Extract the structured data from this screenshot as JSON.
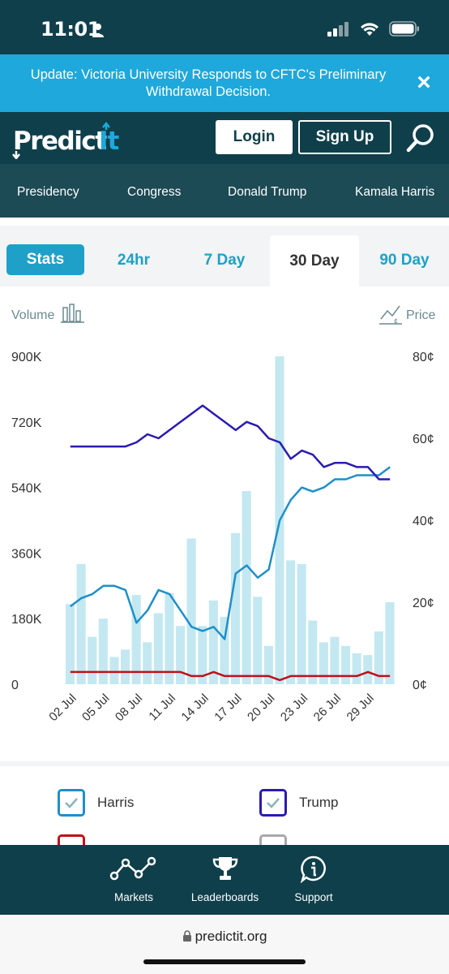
{
  "status_bar": {
    "time": "11:01"
  },
  "banner": {
    "text": "Update: Victoria University Responds to CFTC's Preliminary Withdrawal Decision.",
    "close_label": "×"
  },
  "header": {
    "logo_text": "PredictIt",
    "login_label": "Login",
    "signup_label": "Sign Up"
  },
  "nav": {
    "items": [
      "Presidency",
      "Congress",
      "Donald Trump",
      "Kamala Harris"
    ]
  },
  "tabs": {
    "items": [
      "Stats",
      "24hr",
      "7 Day",
      "30 Day",
      "90 Day"
    ],
    "active": "30 Day"
  },
  "chart_labels": {
    "volume_label": "Volume",
    "price_label": "Price"
  },
  "chart_data": {
    "type": "bar+line",
    "x": [
      "02 Jul",
      "03 Jul",
      "04 Jul",
      "05 Jul",
      "06 Jul",
      "07 Jul",
      "08 Jul",
      "09 Jul",
      "10 Jul",
      "11 Jul",
      "12 Jul",
      "13 Jul",
      "14 Jul",
      "15 Jul",
      "16 Jul",
      "17 Jul",
      "18 Jul",
      "19 Jul",
      "20 Jul",
      "21 Jul",
      "22 Jul",
      "23 Jul",
      "24 Jul",
      "25 Jul",
      "26 Jul",
      "27 Jul",
      "28 Jul",
      "29 Jul",
      "30 Jul",
      "31 Jul"
    ],
    "xtick_labels": [
      "02 Jul",
      "05 Jul",
      "08 Jul",
      "11 Jul",
      "14 Jul",
      "17 Jul",
      "20 Jul",
      "23 Jul",
      "26 Jul",
      "29 Jul"
    ],
    "left_axis": {
      "label": "Volume",
      "ticks": [
        "0",
        "180K",
        "360K",
        "540K",
        "720K",
        "900K"
      ],
      "range": [
        0,
        900000
      ]
    },
    "right_axis": {
      "label": "Price",
      "ticks": [
        "0¢",
        "20¢",
        "40¢",
        "60¢",
        "80¢"
      ],
      "range": [
        0,
        80
      ]
    },
    "volume": [
      220000,
      330000,
      130000,
      180000,
      75000,
      95000,
      245000,
      115000,
      195000,
      250000,
      160000,
      400000,
      160000,
      230000,
      185000,
      415000,
      530000,
      240000,
      105000,
      900000,
      340000,
      330000,
      175000,
      115000,
      130000,
      105000,
      85000,
      80000,
      145000,
      225000
    ],
    "series": [
      {
        "name": "Harris",
        "color": "#1e8fc8",
        "values": [
          19,
          21,
          22,
          24,
          24,
          23,
          15,
          18,
          23,
          22,
          18,
          14,
          13,
          14,
          11,
          27,
          29,
          26,
          28,
          40,
          45,
          48,
          47,
          48,
          50,
          50,
          51,
          51,
          51,
          53
        ]
      },
      {
        "name": "Trump",
        "color": "#2a1bb0",
        "values": [
          58,
          58,
          58,
          58,
          58,
          58,
          59,
          61,
          60,
          62,
          64,
          66,
          68,
          66,
          64,
          62,
          64,
          63,
          60,
          59,
          55,
          57,
          56,
          53,
          54,
          54,
          53,
          53,
          50,
          50
        ]
      },
      {
        "name": "",
        "color": "#c0101a",
        "values": [
          3,
          3,
          3,
          3,
          3,
          3,
          3,
          3,
          3,
          3,
          3,
          2,
          2,
          3,
          2,
          2,
          2,
          2,
          2,
          1,
          2,
          2,
          2,
          2,
          2,
          2,
          2,
          3,
          2,
          2
        ]
      }
    ],
    "bar_color": "#c3e8f1"
  },
  "legend": {
    "items": [
      {
        "label": "Harris",
        "color": "#1e8fc8"
      },
      {
        "label": "Trump",
        "color": "#2a1bb0"
      },
      {
        "label": "",
        "color": "#c0101a"
      },
      {
        "label": "",
        "color": "#a8a8a8"
      }
    ]
  },
  "bottom_bar": {
    "items": [
      "Markets",
      "Leaderboards",
      "Support"
    ]
  },
  "url_bar": {
    "url": "predictit.org"
  }
}
